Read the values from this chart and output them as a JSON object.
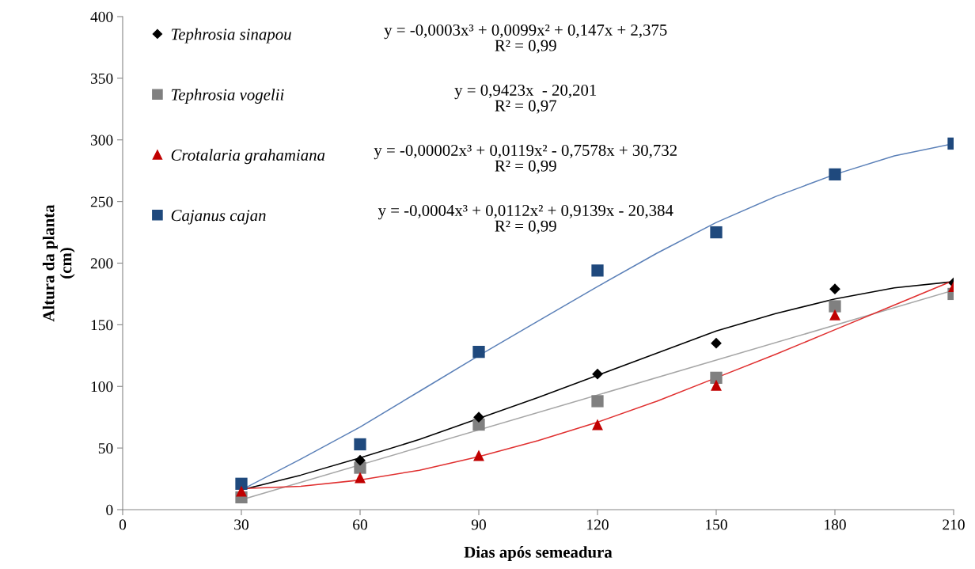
{
  "chart_data": {
    "type": "scatter",
    "xlabel": "Dias após semeadura",
    "ylabel": "Altura da planta\n(cm)",
    "xlim": [
      0,
      210
    ],
    "xticks": [
      0,
      30,
      60,
      90,
      120,
      150,
      180,
      210
    ],
    "ylim": [
      0,
      400
    ],
    "yticks": [
      0,
      50,
      100,
      150,
      200,
      250,
      300,
      350,
      400
    ],
    "grid": false,
    "legend": "top left",
    "series": [
      {
        "name": "Tephrosia sinapou",
        "marker": "diamond",
        "color": "#000000",
        "x": [
          60,
          90,
          120,
          150,
          180,
          210
        ],
        "values": [
          40,
          75,
          110,
          135,
          179,
          184
        ]
      },
      {
        "name": "Tephrosia vogelii",
        "marker": "square",
        "color": "#808080",
        "x": [
          30,
          60,
          90,
          120,
          150,
          180,
          210
        ],
        "values": [
          10,
          34,
          69,
          88,
          107,
          165,
          175
        ]
      },
      {
        "name": "Crotalaria grahamiana",
        "marker": "triangle",
        "color": "#c00000",
        "x": [
          30,
          60,
          90,
          120,
          150,
          180,
          210
        ],
        "values": [
          15,
          26,
          44,
          69,
          101,
          158,
          181
        ]
      },
      {
        "name": "Cajanus cajan",
        "marker": "square",
        "color": "#1f497d",
        "x": [
          30,
          60,
          90,
          120,
          150,
          180,
          210
        ],
        "values": [
          21,
          53,
          128,
          194,
          225,
          272,
          297
        ]
      },
      {
        "type": "line",
        "marker": "none",
        "color": "#000000",
        "x": [
          30,
          45,
          60,
          75,
          90,
          105,
          120,
          135,
          150,
          165,
          180,
          195,
          210
        ],
        "values": [
          16,
          28,
          42,
          57,
          74,
          91,
          109,
          127,
          145,
          159,
          171,
          180,
          185
        ]
      },
      {
        "type": "line",
        "marker": "none",
        "color": "#a6a6a6",
        "x": [
          30,
          210
        ],
        "values": [
          8,
          178
        ]
      },
      {
        "type": "line",
        "marker": "none",
        "color": "#e03030",
        "x": [
          30,
          45,
          60,
          75,
          90,
          105,
          120,
          135,
          150,
          165,
          180,
          195,
          210
        ],
        "values": [
          17,
          19,
          24,
          32,
          43,
          56,
          71,
          88,
          107,
          126,
          146,
          166,
          186
        ]
      },
      {
        "type": "line",
        "marker": "none",
        "color": "#5b80b8",
        "x": [
          30,
          45,
          60,
          75,
          90,
          105,
          120,
          135,
          150,
          165,
          180,
          195,
          210
        ],
        "values": [
          16,
          41,
          67,
          96,
          125,
          153,
          181,
          208,
          233,
          254,
          272,
          287,
          297
        ]
      }
    ],
    "annotations": [
      "y = -0,0003x³ + 0,0099x² + 0,147x + 2,375\nR² = 0,99",
      "y = 0,9423x  - 20,201\nR² = 0,97",
      "y = -0,00002x³ + 0,0119x² - 0,7578x + 30,732\nR² = 0,99",
      "y = -0,0004x³ + 0,0112x² + 0,9139x - 20,384\nR² = 0,99"
    ]
  }
}
